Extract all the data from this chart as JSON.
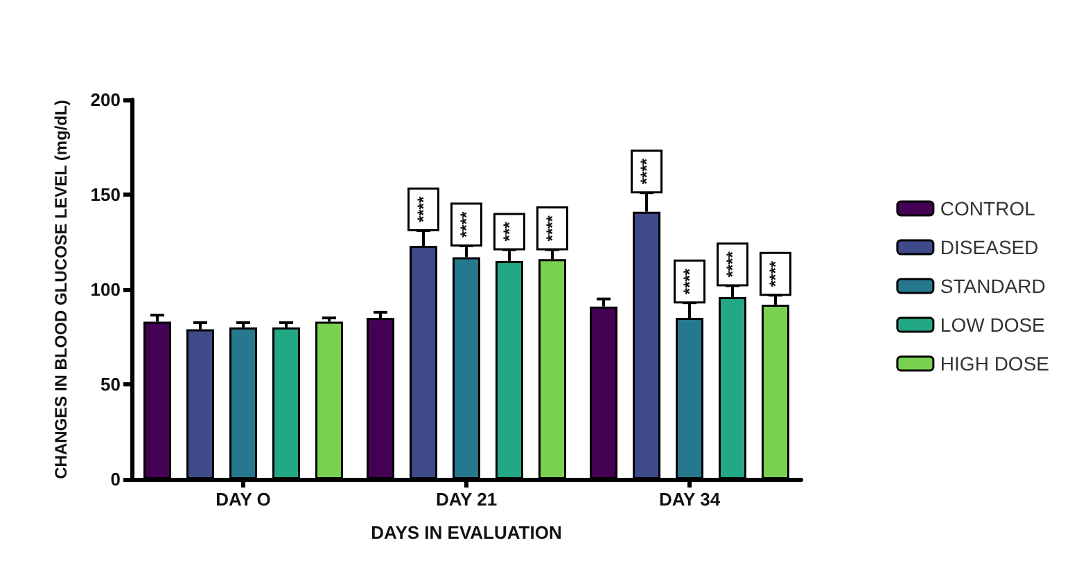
{
  "chart_data": {
    "type": "bar",
    "xlabel": "DAYS IN EVALUATION",
    "ylabel": "CHANGES IN BLOOD GLUCOSE LEVEL (mg/dL)",
    "categories": [
      "DAY O",
      "DAY 21",
      "DAY 34"
    ],
    "series": [
      {
        "name": "CONTROL",
        "color": "#440154",
        "values": [
          83,
          85,
          91
        ],
        "errors": [
          3.5,
          3,
          4
        ]
      },
      {
        "name": "DISEASED",
        "color": "#3e4a89",
        "values": [
          79,
          123,
          141
        ],
        "errors": [
          3.5,
          8,
          10
        ],
        "value_labels": [
          null,
          "****",
          "****"
        ]
      },
      {
        "name": "STANDARD",
        "color": "#26788e",
        "values": [
          80,
          117,
          85
        ],
        "errors": [
          2.5,
          6,
          8
        ],
        "value_labels": [
          null,
          "****",
          "****"
        ]
      },
      {
        "name": "LOW DOSE",
        "color": "#22a884",
        "values": [
          80,
          115,
          96
        ],
        "errors": [
          2.5,
          6,
          6
        ],
        "value_labels": [
          null,
          "***",
          "****"
        ]
      },
      {
        "name": "HIGH DOSE",
        "color": "#7ad151",
        "values": [
          83,
          116,
          92
        ],
        "errors": [
          2,
          5,
          5
        ],
        "value_labels": [
          null,
          "****",
          "****"
        ]
      }
    ],
    "ylim": [
      0,
      200
    ],
    "yticks": [
      0,
      50,
      100,
      150,
      200
    ],
    "grid": false,
    "legend": "right"
  }
}
